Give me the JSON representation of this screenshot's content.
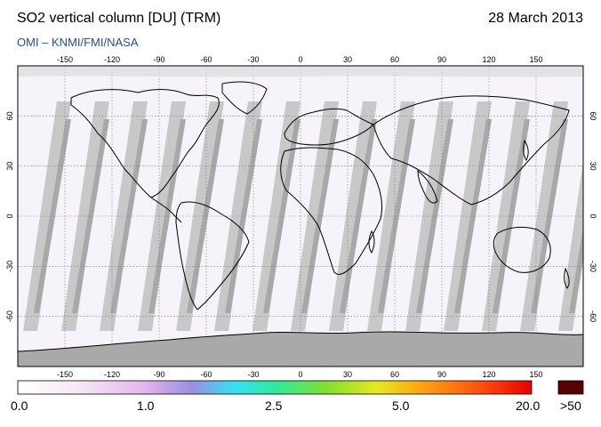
{
  "header": {
    "title": "SO2 vertical column [DU] (TRM)",
    "date": "28 March 2013",
    "credit": "OMI  –  KNMI/FMI/NASA"
  },
  "map": {
    "lon_ticks": [
      "-150",
      "-120",
      "-90",
      "-60",
      "-30",
      "0",
      "30",
      "60",
      "90",
      "120",
      "150"
    ],
    "lat_ticks": [
      "60",
      "30",
      "0",
      "-30",
      "-60"
    ],
    "swath_color": "#c8c8c8",
    "swath_overlap_color": "#a8a8a8",
    "no_data_color": "#a9a9a9",
    "background_color": "#f6f3fa"
  },
  "colorbar": {
    "labels": [
      "0.0",
      "1.0",
      "2.5",
      "5.0",
      "20.0",
      ">50"
    ],
    "over_color": "#5a0000"
  }
}
